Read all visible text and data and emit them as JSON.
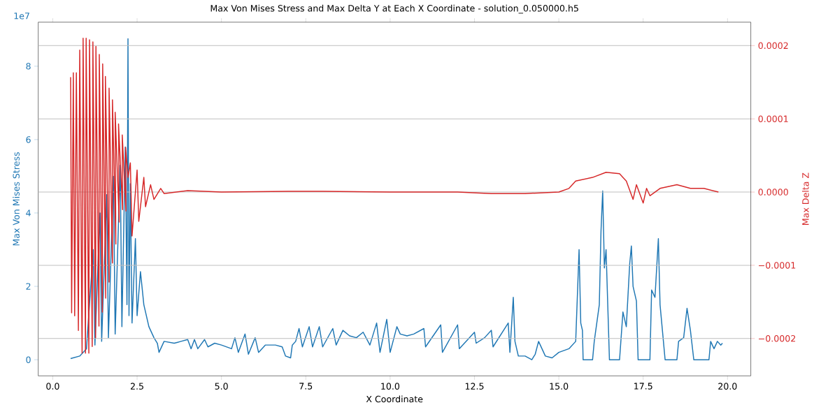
{
  "chart_data": {
    "type": "line",
    "title": "Max Von Mises Stress and Max Delta Y at Each X Coordinate - solution_0.050000.h5",
    "xlabel": "X Coordinate",
    "ylabel": "Max Von Mises Stress",
    "y2label": "Max Delta Z",
    "annotations": [
      "1e7"
    ],
    "xlim": [
      -0.43,
      20.69
    ],
    "xticks": [
      {
        "value": 0,
        "label": "0.0"
      },
      {
        "value": 2.5,
        "label": "2.5"
      },
      {
        "value": 5,
        "label": "5.0"
      },
      {
        "value": 7.5,
        "label": "7.5"
      },
      {
        "value": 10,
        "label": "10.0"
      },
      {
        "value": 12.5,
        "label": "12.5"
      },
      {
        "value": 15,
        "label": "15.0"
      },
      {
        "value": 17.5,
        "label": "17.5"
      },
      {
        "value": 20,
        "label": "20.0"
      }
    ],
    "ylim": [
      -0.44,
      9.2
    ],
    "yticks": [
      0,
      2,
      4,
      6,
      8
    ],
    "y2lim": [
      -0.000251,
      0.000232
    ],
    "y2ticks": [
      {
        "value": -0.0002,
        "label": "−0.0002"
      },
      {
        "value": -0.0001,
        "label": "−0.0001"
      },
      {
        "value": 0,
        "label": "0.0000"
      },
      {
        "value": 0.0001,
        "label": "0.0001"
      },
      {
        "value": 0.0002,
        "label": "0.0002"
      }
    ],
    "grid": "y2",
    "series": [
      {
        "color": "#1f77b4",
        "x": [
          0.53,
          0.8,
          1.0,
          1.2,
          1.25,
          1.4,
          1.45,
          1.6,
          1.65,
          1.8,
          1.85,
          2.0,
          2.05,
          2.15,
          2.2,
          2.23,
          2.26,
          2.3,
          2.35,
          2.45,
          2.5,
          2.6,
          2.7,
          2.75,
          2.85,
          3.0,
          3.1,
          3.15,
          3.3,
          3.6,
          3.8,
          4.0,
          4.1,
          4.2,
          4.3,
          4.5,
          4.6,
          4.8,
          5.0,
          5.3,
          5.4,
          5.5,
          5.7,
          5.8,
          6.0,
          6.1,
          6.3,
          6.6,
          6.8,
          6.9,
          7.05,
          7.1,
          7.2,
          7.3,
          7.4,
          7.6,
          7.7,
          7.9,
          8.0,
          8.3,
          8.4,
          8.6,
          8.8,
          9.0,
          9.2,
          9.4,
          9.6,
          9.7,
          9.9,
          10.0,
          10.2,
          10.3,
          10.5,
          10.7,
          11.0,
          11.05,
          11.5,
          11.55,
          12.0,
          12.05,
          12.5,
          12.55,
          12.8,
          13.0,
          13.05,
          13.5,
          13.55,
          13.65,
          13.7,
          13.8,
          14.0,
          14.2,
          14.3,
          14.4,
          14.6,
          14.8,
          15.0,
          15.3,
          15.5,
          15.6,
          15.65,
          15.7,
          15.72,
          16.0,
          16.05,
          16.2,
          16.25,
          16.3,
          16.35,
          16.4,
          16.45,
          16.5,
          16.8,
          16.9,
          17.0,
          17.1,
          17.15,
          17.2,
          17.3,
          17.35,
          17.7,
          17.75,
          17.85,
          17.95,
          18.0,
          18.1,
          18.15,
          18.5,
          18.55,
          18.7,
          18.8,
          18.9,
          19.0,
          19.45,
          19.5,
          19.6,
          19.7,
          19.8,
          19.85
        ],
        "values": [
          0.03,
          0.1,
          0.3,
          3.0,
          0.4,
          4.0,
          0.5,
          4.5,
          0.6,
          5.0,
          0.7,
          5.3,
          0.9,
          5.8,
          1.5,
          8.75,
          1.2,
          4.8,
          1.0,
          3.3,
          1.2,
          2.4,
          1.5,
          1.3,
          0.9,
          0.6,
          0.45,
          0.2,
          0.5,
          0.45,
          0.5,
          0.55,
          0.3,
          0.55,
          0.3,
          0.55,
          0.35,
          0.45,
          0.4,
          0.3,
          0.6,
          0.2,
          0.7,
          0.15,
          0.6,
          0.2,
          0.4,
          0.4,
          0.35,
          0.1,
          0.05,
          0.4,
          0.5,
          0.85,
          0.35,
          0.9,
          0.35,
          0.9,
          0.35,
          0.85,
          0.4,
          0.8,
          0.65,
          0.6,
          0.75,
          0.4,
          1.0,
          0.2,
          1.1,
          0.2,
          0.9,
          0.7,
          0.65,
          0.7,
          0.85,
          0.35,
          0.95,
          0.2,
          0.95,
          0.3,
          0.75,
          0.45,
          0.6,
          0.8,
          0.35,
          1.0,
          0.2,
          1.7,
          0.5,
          0.1,
          0.1,
          0,
          0.15,
          0.5,
          0.1,
          0.05,
          0.2,
          0.3,
          0.5,
          3.0,
          1.0,
          0.8,
          0,
          0,
          0.5,
          1.5,
          3.5,
          4.6,
          2.5,
          3.0,
          1.5,
          0,
          0,
          1.3,
          0.9,
          2.6,
          3.1,
          2.0,
          1.6,
          0,
          0,
          1.9,
          1.7,
          3.3,
          1.5,
          0.5,
          0,
          0,
          0.5,
          0.6,
          1.4,
          0.8,
          0,
          0,
          0.5,
          0.3,
          0.5,
          0.4,
          0.45
        ]
      },
      {
        "color": "#d62728",
        "axis": "y2",
        "x": [
          0.53,
          0.56,
          0.61,
          0.65,
          0.7,
          0.76,
          0.8,
          0.87,
          0.9,
          0.97,
          0.99,
          1.07,
          1.09,
          1.17,
          1.19,
          1.27,
          1.28,
          1.37,
          1.38,
          1.47,
          1.48,
          1.57,
          1.56,
          1.67,
          1.67,
          1.77,
          1.77,
          1.87,
          1.85,
          1.97,
          1.95,
          2.07,
          2.06,
          2.17,
          2.16,
          2.23,
          2.3,
          2.35,
          2.5,
          2.55,
          2.7,
          2.75,
          2.9,
          3.0,
          3.2,
          3.3,
          4.0,
          5.0,
          7.0,
          8.0,
          10.0,
          12.0,
          13.0,
          14.0,
          15.0,
          15.3,
          15.5,
          16.0,
          16.4,
          16.8,
          17.0,
          17.2,
          17.3,
          17.5,
          17.6,
          17.7,
          18.0,
          18.5,
          18.9,
          19.3,
          19.73
        ],
        "values": [
          0.000157,
          -0.000165,
          0.000163,
          -0.000169,
          0.000163,
          -0.000189,
          0.000194,
          -0.00022,
          0.00021,
          -0.00022,
          0.00021,
          -0.00022,
          0.000208,
          -0.000211,
          0.000205,
          -0.000199,
          0.000199,
          -0.000183,
          0.000188,
          -0.000164,
          0.000175,
          -0.000145,
          0.000158,
          -0.000123,
          0.000142,
          -9.7e-05,
          0.000126,
          -7.1e-05,
          0.000109,
          -4.1e-05,
          9.3e-05,
          -2.4e-05,
          7.8e-05,
          -2.6e-05,
          6.1e-05,
          2e-05,
          4e-05,
          -6e-05,
          3e-05,
          -4e-05,
          2e-05,
          -2e-05,
          1e-05,
          -1e-05,
          5e-06,
          -2e-06,
          2e-06,
          0,
          1e-06,
          1e-06,
          0,
          0,
          -2e-06,
          -2e-06,
          0,
          5e-06,
          1.5e-05,
          2e-05,
          2.7e-05,
          2.5e-05,
          1.5e-05,
          -1e-05,
          1e-05,
          -1.5e-05,
          5e-06,
          -5e-06,
          5e-06,
          1e-05,
          5e-06,
          5e-06,
          0
        ]
      }
    ]
  }
}
